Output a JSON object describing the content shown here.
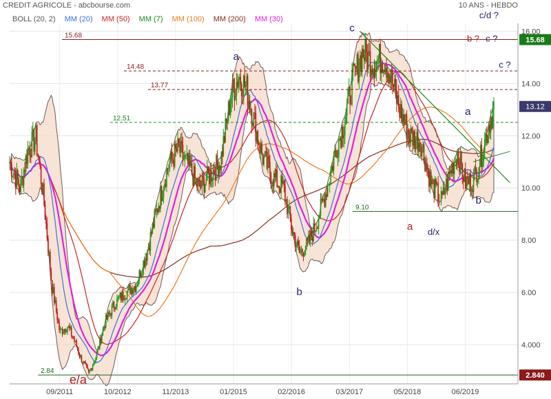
{
  "header": {
    "title": "CREDIT AGRICOLE - abcbourse.com",
    "period": "10 ANS - HEBDO"
  },
  "legend": [
    {
      "label": "BOLL (20, 2)",
      "color": "#555555"
    },
    {
      "label": "MM (20)",
      "color": "#3b6fd8"
    },
    {
      "label": "MM (50)",
      "color": "#cc2222"
    },
    {
      "label": "MM (7)",
      "color": "#1a8a1a"
    },
    {
      "label": "MM (100)",
      "color": "#f07a1a"
    },
    {
      "label": "MM (200)",
      "color": "#8b2a1a"
    },
    {
      "label": "MM (30)",
      "color": "#e020e0"
    }
  ],
  "chart_data": {
    "type": "line",
    "x_ticks": [
      "09/2011",
      "10/2012",
      "11/2013",
      "01/2015",
      "02/2016",
      "03/2017",
      "05/2018",
      "06/2019"
    ],
    "y_ticks": [
      4.0,
      6.0,
      8.0,
      10.0,
      12.0,
      14.0,
      16.0
    ],
    "ylim": [
      2.5,
      16.3
    ],
    "tick_labels_y": [
      "4.000",
      "6.00",
      "8.00",
      "10.00",
      "12.00",
      "14.00",
      "16.00"
    ],
    "price_path": [
      {
        "x": 2010.8,
        "y": 11.0
      },
      {
        "x": 2011.0,
        "y": 10.0
      },
      {
        "x": 2011.15,
        "y": 11.5
      },
      {
        "x": 2011.3,
        "y": 11.9
      },
      {
        "x": 2011.45,
        "y": 9.5
      },
      {
        "x": 2011.6,
        "y": 6.3
      },
      {
        "x": 2011.75,
        "y": 4.5
      },
      {
        "x": 2011.9,
        "y": 4.7
      },
      {
        "x": 2012.0,
        "y": 4.3
      },
      {
        "x": 2012.15,
        "y": 3.5
      },
      {
        "x": 2012.3,
        "y": 2.9
      },
      {
        "x": 2012.45,
        "y": 3.6
      },
      {
        "x": 2012.6,
        "y": 4.8
      },
      {
        "x": 2012.8,
        "y": 5.6
      },
      {
        "x": 2013.0,
        "y": 6.0
      },
      {
        "x": 2013.2,
        "y": 6.3
      },
      {
        "x": 2013.4,
        "y": 7.5
      },
      {
        "x": 2013.6,
        "y": 9.2
      },
      {
        "x": 2013.8,
        "y": 10.8
      },
      {
        "x": 2014.0,
        "y": 11.5
      },
      {
        "x": 2014.2,
        "y": 10.8
      },
      {
        "x": 2014.4,
        "y": 10.0
      },
      {
        "x": 2014.6,
        "y": 10.5
      },
      {
        "x": 2014.8,
        "y": 11.0
      },
      {
        "x": 2015.0,
        "y": 13.5
      },
      {
        "x": 2015.15,
        "y": 14.3
      },
      {
        "x": 2015.3,
        "y": 13.8
      },
      {
        "x": 2015.45,
        "y": 12.5
      },
      {
        "x": 2015.6,
        "y": 11.2
      },
      {
        "x": 2015.8,
        "y": 10.4
      },
      {
        "x": 2016.0,
        "y": 10.0
      },
      {
        "x": 2016.15,
        "y": 8.5
      },
      {
        "x": 2016.3,
        "y": 7.5
      },
      {
        "x": 2016.45,
        "y": 7.8
      },
      {
        "x": 2016.6,
        "y": 8.5
      },
      {
        "x": 2016.8,
        "y": 9.8
      },
      {
        "x": 2017.0,
        "y": 11.5
      },
      {
        "x": 2017.15,
        "y": 12.5
      },
      {
        "x": 2017.3,
        "y": 14.0
      },
      {
        "x": 2017.5,
        "y": 15.2
      },
      {
        "x": 2017.7,
        "y": 14.8
      },
      {
        "x": 2017.9,
        "y": 15.0
      },
      {
        "x": 2018.0,
        "y": 14.5
      },
      {
        "x": 2018.2,
        "y": 13.0
      },
      {
        "x": 2018.4,
        "y": 12.0
      },
      {
        "x": 2018.6,
        "y": 11.8
      },
      {
        "x": 2018.8,
        "y": 10.2
      },
      {
        "x": 2019.0,
        "y": 9.5
      },
      {
        "x": 2019.15,
        "y": 10.5
      },
      {
        "x": 2019.3,
        "y": 11.4
      },
      {
        "x": 2019.45,
        "y": 10.2
      },
      {
        "x": 2019.6,
        "y": 10.3
      },
      {
        "x": 2019.75,
        "y": 11.2
      },
      {
        "x": 2019.9,
        "y": 12.5
      },
      {
        "x": 2020.0,
        "y": 13.1
      }
    ],
    "horizontal_levels": [
      {
        "value": 15.68,
        "label": "15.68",
        "color": "#8b1a1a",
        "style": "solid",
        "badge": "15.68",
        "badge_color": "#1a7a1a"
      },
      {
        "value": 14.48,
        "label": "14.48",
        "color": "#8b1a1a",
        "style": "dashed"
      },
      {
        "value": 13.77,
        "label": "13.77",
        "color": "#8b1a1a",
        "style": "dashed"
      },
      {
        "value": 12.51,
        "label": "12.51",
        "color": "#1a8a1a",
        "style": "dashed"
      },
      {
        "value": 9.1,
        "label": "9.10",
        "color": "#1a6a1a",
        "style": "solid"
      },
      {
        "value": 2.84,
        "label": "2.84",
        "color": "#1a6a1a",
        "style": "solid",
        "badge": "2.840",
        "badge_color": "#8b1a1a"
      }
    ],
    "last_price_badge": {
      "value": 13.12,
      "label": "13.12",
      "color": "#3a3a6a"
    },
    "wave_labels": [
      {
        "text": "c",
        "x": 2017.3,
        "y": 16.0,
        "color": "#22226a"
      },
      {
        "text": "b ?",
        "x": 2019.6,
        "y": 15.6,
        "color": "#b01a1a"
      },
      {
        "text": "c ?",
        "x": 2019.95,
        "y": 15.6,
        "color": "#22226a"
      },
      {
        "text": "c/d ?",
        "x": 2019.9,
        "y": 16.5,
        "color": "#22226a"
      },
      {
        "text": "a",
        "x": 2015.1,
        "y": 14.9,
        "color": "#22226a"
      },
      {
        "text": "c ?",
        "x": 2020.2,
        "y": 14.6,
        "color": "#22226a"
      },
      {
        "text": "a",
        "x": 2019.5,
        "y": 12.8,
        "color": "#22226a"
      },
      {
        "text": "b",
        "x": 2019.7,
        "y": 9.4,
        "color": "#22226a"
      },
      {
        "text": "a",
        "x": 2018.4,
        "y": 8.4,
        "color": "#b01a1a"
      },
      {
        "text": "d/x",
        "x": 2018.85,
        "y": 8.2,
        "color": "#22226a"
      },
      {
        "text": "b",
        "x": 2016.3,
        "y": 5.9,
        "color": "#22226a"
      },
      {
        "text": "e/a",
        "x": 2012.1,
        "y": 2.5,
        "color": "#b01a1a"
      }
    ]
  }
}
